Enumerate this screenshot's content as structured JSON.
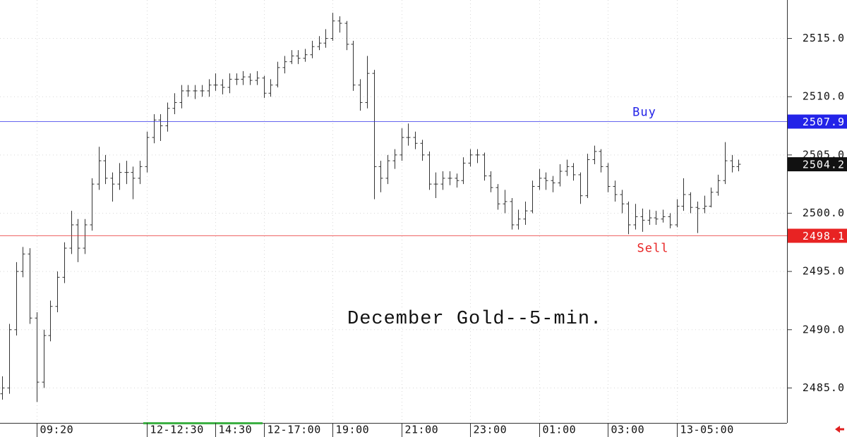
{
  "chart_data": {
    "type": "ohlc",
    "annotation": "December Gold--5-min.",
    "color": "#333333",
    "grid": true,
    "ylim": [
      2482,
      2518.3
    ],
    "yticks": [
      {
        "value": 2485,
        "label": "2485.0"
      },
      {
        "value": 2490,
        "label": "2490.0"
      },
      {
        "value": 2495,
        "label": "2495.0"
      },
      {
        "value": 2500,
        "label": "2500.0"
      },
      {
        "value": 2505,
        "label": "2505.0"
      },
      {
        "value": 2510,
        "label": "2510.0"
      },
      {
        "value": 2515,
        "label": "2515.0"
      }
    ],
    "lines": [
      {
        "name": "Buy",
        "value": 2507.9,
        "color": "#2323e8"
      },
      {
        "name": "Sell",
        "value": 2498.1,
        "color": "#e82323"
      }
    ],
    "last": 2504.2,
    "categories": [
      null,
      null,
      null,
      null,
      null,
      "09:20",
      null,
      null,
      null,
      null,
      null,
      null,
      null,
      null,
      null,
      null,
      null,
      null,
      null,
      null,
      null,
      "12-12:30",
      null,
      null,
      null,
      null,
      null,
      null,
      null,
      null,
      null,
      "14:30",
      null,
      null,
      null,
      null,
      null,
      null,
      "12-17:00",
      null,
      null,
      null,
      null,
      null,
      null,
      null,
      null,
      null,
      "19:00",
      null,
      null,
      null,
      null,
      null,
      null,
      null,
      null,
      null,
      "21:00",
      null,
      null,
      null,
      null,
      null,
      null,
      null,
      null,
      null,
      "23:00",
      null,
      null,
      null,
      null,
      null,
      null,
      null,
      null,
      null,
      "01:00",
      null,
      null,
      null,
      null,
      null,
      null,
      null,
      null,
      null,
      "03:00",
      null,
      null,
      null,
      null,
      null,
      null,
      null,
      null,
      null,
      "13-05:00",
      null,
      null,
      null,
      null,
      null,
      null,
      null,
      null,
      null
    ],
    "open": [
      2484.5,
      2485.0,
      2490.0,
      2495.0,
      2496.5,
      2491.0,
      2485.5,
      2489.5,
      2492.0,
      2494.5,
      2497.0,
      2499.0,
      2497.0,
      2499.0,
      2502.5,
      2504.5,
      2503.0,
      2502.5,
      2503.5,
      2503.5,
      2503.0,
      2504.0,
      2506.5,
      2508.0,
      2507.5,
      2509.0,
      2509.5,
      2510.5,
      2510.5,
      2510.5,
      2510.5,
      2511.0,
      2511.0,
      2510.8,
      2511.5,
      2511.5,
      2511.7,
      2511.4,
      2511.6,
      2510.3,
      2511.0,
      2512.5,
      2513.0,
      2513.5,
      2513.3,
      2513.6,
      2514.3,
      2514.6,
      2515.0,
      2516.5,
      2516.3,
      2514.5,
      2511.0,
      2509.5,
      2512.0,
      2504.0,
      2503.0,
      2504.5,
      2505.0,
      2506.5,
      2506.5,
      2506.0,
      2505.0,
      2502.5,
      2502.5,
      2503.0,
      2503.0,
      2502.8,
      2504.3,
      2505.0,
      2505.0,
      2503.2,
      2502.2,
      2500.8,
      2501.0,
      2499.0,
      2499.5,
      2500.2,
      2502.3,
      2503.0,
      2502.8,
      2502.6,
      2503.6,
      2504.0,
      2503.3,
      2501.5,
      2504.6,
      2505.3,
      2504.0,
      2502.3,
      2501.6,
      2500.8,
      2499.0,
      2499.7,
      2499.4,
      2499.6,
      2499.5,
      2499.7,
      2499.0,
      2500.6,
      2501.6,
      2500.5,
      2500.4,
      2500.6,
      2501.8,
      2502.8,
      2504.5,
      2504.0
    ],
    "high": [
      2486.0,
      2490.5,
      2495.8,
      2497.1,
      2497.0,
      2491.5,
      2490.0,
      2492.5,
      2495.0,
      2497.5,
      2500.2,
      2499.5,
      2499.5,
      2503.0,
      2505.7,
      2505.0,
      2503.5,
      2504.3,
      2504.5,
      2504.0,
      2504.5,
      2507.0,
      2508.5,
      2508.5,
      2509.5,
      2510.3,
      2511.0,
      2511.0,
      2511.0,
      2511.0,
      2511.5,
      2512.0,
      2511.5,
      2512.0,
      2512.0,
      2512.2,
      2512.0,
      2512.2,
      2511.8,
      2511.5,
      2513.0,
      2513.5,
      2514.0,
      2514.0,
      2514.1,
      2514.8,
      2515.2,
      2515.8,
      2517.2,
      2516.9,
      2516.5,
      2514.8,
      2511.5,
      2513.5,
      2512.3,
      2504.5,
      2505.0,
      2505.5,
      2507.3,
      2507.7,
      2507.0,
      2506.3,
      2505.3,
      2503.5,
      2503.6,
      2503.6,
      2503.4,
      2504.8,
      2505.5,
      2505.5,
      2505.2,
      2503.6,
      2502.5,
      2502.0,
      2501.3,
      2500.3,
      2501.0,
      2502.8,
      2503.8,
      2503.5,
      2503.2,
      2504.2,
      2504.6,
      2504.3,
      2503.5,
      2505.1,
      2505.8,
      2505.5,
      2504.3,
      2502.8,
      2502.0,
      2501.0,
      2500.8,
      2500.4,
      2500.3,
      2500.2,
      2500.3,
      2500.0,
      2501.2,
      2503.0,
      2501.8,
      2501.0,
      2501.5,
      2502.2,
      2503.3,
      2506.1,
      2505.0,
      2504.6
    ],
    "low": [
      2484.0,
      2484.5,
      2489.5,
      2494.5,
      2490.5,
      2483.8,
      2485.0,
      2489.0,
      2491.5,
      2494.0,
      2496.5,
      2495.8,
      2496.5,
      2498.5,
      2502.0,
      2502.5,
      2501.0,
      2502.0,
      2502.5,
      2501.2,
      2502.5,
      2503.5,
      2506.0,
      2506.2,
      2507.0,
      2508.5,
      2509.0,
      2510.0,
      2509.8,
      2510.0,
      2510.0,
      2510.5,
      2510.2,
      2510.3,
      2511.0,
      2511.0,
      2511.0,
      2511.0,
      2509.9,
      2510.0,
      2510.8,
      2512.0,
      2512.8,
      2512.8,
      2513.0,
      2513.3,
      2514.0,
      2514.2,
      2514.8,
      2515.5,
      2514.0,
      2510.5,
      2508.8,
      2509.0,
      2501.2,
      2501.8,
      2502.5,
      2503.8,
      2504.5,
      2505.8,
      2505.5,
      2504.5,
      2502.0,
      2501.3,
      2502.0,
      2502.4,
      2502.2,
      2502.5,
      2504.0,
      2504.3,
      2502.8,
      2501.8,
      2500.3,
      2500.0,
      2498.6,
      2498.6,
      2499.0,
      2500.0,
      2502.0,
      2502.0,
      2501.8,
      2502.3,
      2503.2,
      2502.8,
      2500.8,
      2501.3,
      2504.2,
      2503.5,
      2501.8,
      2501.0,
      2500.0,
      2498.2,
      2498.6,
      2498.4,
      2499.0,
      2499.0,
      2499.2,
      2498.7,
      2498.8,
      2500.2,
      2500.0,
      2498.3,
      2500.0,
      2500.5,
      2501.5,
      2502.5,
      2503.5,
      2503.6
    ],
    "close": [
      2485.0,
      2490.0,
      2495.0,
      2496.5,
      2491.0,
      2485.5,
      2489.5,
      2492.0,
      2494.5,
      2497.0,
      2499.0,
      2497.0,
      2499.0,
      2502.5,
      2504.5,
      2503.0,
      2502.5,
      2503.5,
      2503.5,
      2503.0,
      2504.0,
      2506.5,
      2508.0,
      2507.5,
      2509.0,
      2509.5,
      2510.5,
      2510.5,
      2510.5,
      2510.5,
      2511.0,
      2511.0,
      2510.8,
      2511.5,
      2511.5,
      2511.7,
      2511.4,
      2511.6,
      2510.3,
      2511.0,
      2512.5,
      2513.0,
      2513.5,
      2513.3,
      2513.6,
      2514.3,
      2514.6,
      2515.0,
      2516.5,
      2516.3,
      2514.5,
      2511.0,
      2509.5,
      2512.0,
      2504.0,
      2503.0,
      2504.5,
      2505.0,
      2506.5,
      2506.5,
      2506.0,
      2505.0,
      2502.5,
      2502.5,
      2503.0,
      2503.0,
      2502.8,
      2504.3,
      2505.0,
      2505.0,
      2503.2,
      2502.2,
      2500.8,
      2501.0,
      2499.0,
      2499.5,
      2500.2,
      2502.3,
      2503.0,
      2502.8,
      2502.6,
      2503.6,
      2504.0,
      2503.3,
      2501.5,
      2504.6,
      2505.3,
      2504.0,
      2502.3,
      2501.6,
      2500.8,
      2499.0,
      2499.7,
      2499.4,
      2499.6,
      2499.5,
      2499.7,
      2499.0,
      2500.6,
      2501.6,
      2500.5,
      2500.4,
      2500.6,
      2501.8,
      2502.8,
      2504.5,
      2504.0,
      2504.2
    ]
  }
}
